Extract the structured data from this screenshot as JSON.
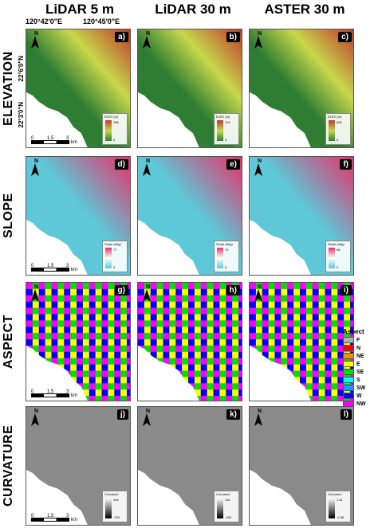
{
  "columns": [
    "LiDAR 5 m",
    "LiDAR 30 m",
    "ASTER 30 m"
  ],
  "rows": [
    "ELEVATION",
    "SLOPE",
    "ASPECT",
    "CURVATURE"
  ],
  "coords": {
    "lon1": "120°42'0\"E",
    "lon2": "120°45'0\"E",
    "lat1": "22°6'0\"N",
    "lat2": "22°3'0\"N"
  },
  "scale": {
    "t0": "0",
    "t1": "1.5",
    "t2": "3",
    "unit": "km"
  },
  "north": "N",
  "panels": [
    {
      "label": "a)",
      "legend_title": "ELEV (m)",
      "max": "786",
      "min": "0"
    },
    {
      "label": "b)",
      "legend_title": "ELEV (m)",
      "max": "724",
      "min": "0"
    },
    {
      "label": "c)",
      "legend_title": "ELEV (m)",
      "max": "828",
      "min": "0"
    },
    {
      "label": "d)",
      "legend_title": "Slope (deg)",
      "max": "77",
      "min": "0"
    },
    {
      "label": "e)",
      "legend_title": "Slope (deg)",
      "max": "70",
      "min": "0"
    },
    {
      "label": "f)",
      "legend_title": "Slope (deg)",
      "max": "56",
      "min": "0"
    },
    {
      "label": "g)"
    },
    {
      "label": "h)"
    },
    {
      "label": "i)"
    },
    {
      "label": "j)",
      "legend_title": "Curvature",
      "max": "194",
      "min": "-229"
    },
    {
      "label": "k)",
      "legend_title": "Curvature",
      "max": "118",
      "min": "-189"
    },
    {
      "label": "l)",
      "legend_title": "Curvature",
      "max": "1.81",
      "min": "-1.88"
    }
  ],
  "aspect_legend": {
    "title": "Aspect",
    "items": [
      {
        "label": "F",
        "color": "#b0b0b0"
      },
      {
        "label": "N",
        "color": "#ff0000"
      },
      {
        "label": "NE",
        "color": "#ff8c00"
      },
      {
        "label": "E",
        "color": "#ffff00"
      },
      {
        "label": "SE",
        "color": "#00e000"
      },
      {
        "label": "S",
        "color": "#00ffff"
      },
      {
        "label": "SW",
        "color": "#00a0ff"
      },
      {
        "label": "W",
        "color": "#0000ff"
      },
      {
        "label": "NW",
        "color": "#ff00ff"
      }
    ]
  },
  "colors": {
    "elev_low": "#2e7d32",
    "elev_mid": "#c6d84a",
    "elev_high": "#c0392b",
    "slope_low": "#5ec8d8",
    "slope_high": "#e8306a",
    "curv_bg": "#8a8a8a"
  }
}
